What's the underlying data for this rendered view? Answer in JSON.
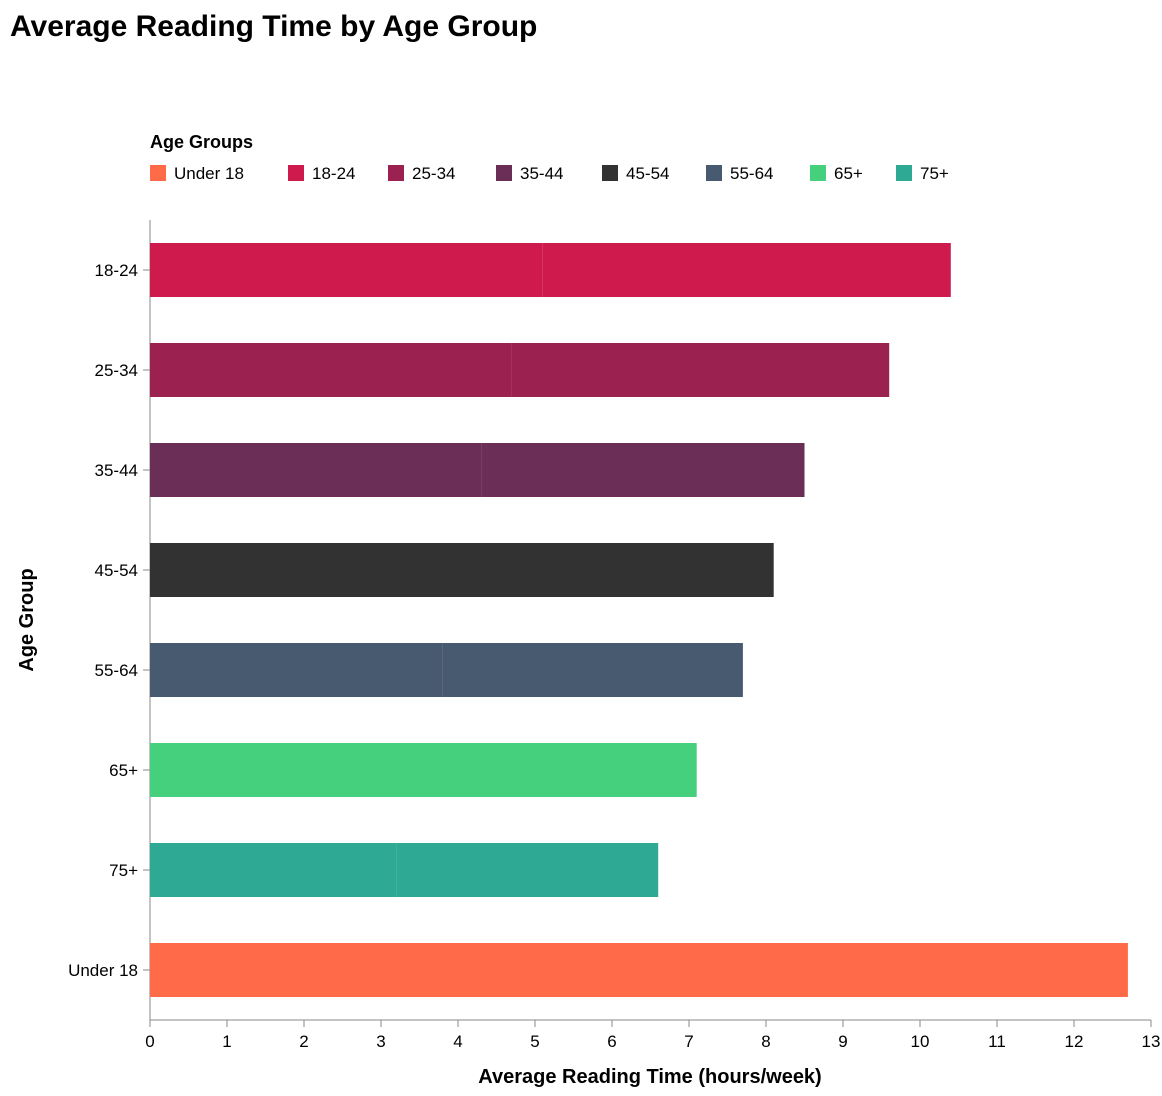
{
  "chart_data": {
    "type": "bar",
    "orientation": "horizontal",
    "stacked": true,
    "title": "Average Reading Time by Age Group",
    "xlabel": "Average Reading Time (hours/week)",
    "ylabel": "Age Group",
    "xlim": [
      0,
      13
    ],
    "x_ticks": [
      0,
      1,
      2,
      3,
      4,
      5,
      6,
      7,
      8,
      9,
      10,
      11,
      12,
      13
    ],
    "grid": false,
    "legend": {
      "title": "Age Groups",
      "placement": "top",
      "entries": [
        "Under 18",
        "18-24",
        "25-34",
        "35-44",
        "45-54",
        "55-64",
        "65+",
        "75+"
      ]
    },
    "colors": {
      "Under 18": "#ff6a48",
      "18-24": "#cf1a4e",
      "25-34": "#9a2150",
      "35-44": "#6a2e57",
      "45-54": "#333233",
      "55-64": "#485a6f",
      "65+": "#44d07d",
      "75+": "#2ea993"
    },
    "categories": [
      "18-24",
      "25-34",
      "35-44",
      "45-54",
      "55-64",
      "65+",
      "75+",
      "Under 18"
    ],
    "segments": [
      {
        "category": "18-24",
        "values": [
          5.1,
          5.3
        ]
      },
      {
        "category": "25-34",
        "values": [
          4.7,
          4.9
        ]
      },
      {
        "category": "35-44",
        "values": [
          4.3,
          4.2
        ]
      },
      {
        "category": "45-54",
        "values": [
          4.0,
          4.1
        ]
      },
      {
        "category": "55-64",
        "values": [
          3.8,
          3.9
        ]
      },
      {
        "category": "65+",
        "values": [
          3.5,
          3.6
        ]
      },
      {
        "category": "75+",
        "values": [
          3.2,
          3.4
        ]
      },
      {
        "category": "Under 18",
        "values": [
          12.7
        ]
      }
    ]
  }
}
